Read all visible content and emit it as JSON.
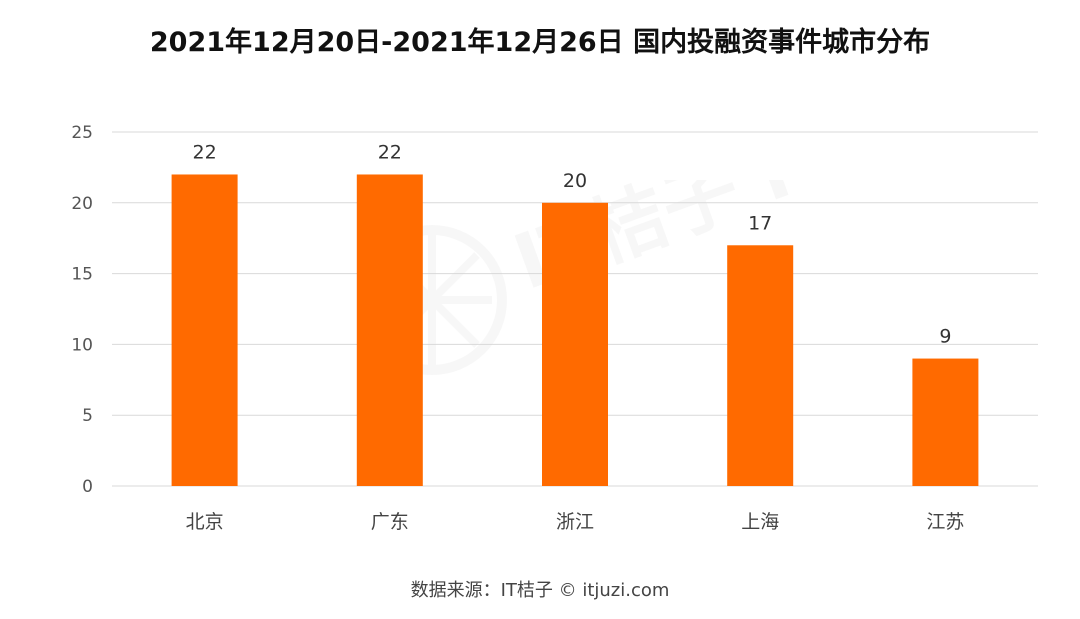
{
  "chart_data": {
    "type": "bar",
    "title": "2021年12月20日-2021年12月26日 国内投融资事件城市分布",
    "categories": [
      "北京",
      "广东",
      "浙江",
      "上海",
      "江苏"
    ],
    "values": [
      22,
      22,
      20,
      17,
      9
    ],
    "ylim": [
      0,
      25
    ],
    "yticks": [
      0,
      5,
      10,
      15,
      20,
      25
    ],
    "grid": true,
    "bar_color": "#FF6A00",
    "data_labels": true
  },
  "source": "数据来源：IT桔子 © itjuzi.com",
  "watermark": "IT桔子 itjuzi.com"
}
